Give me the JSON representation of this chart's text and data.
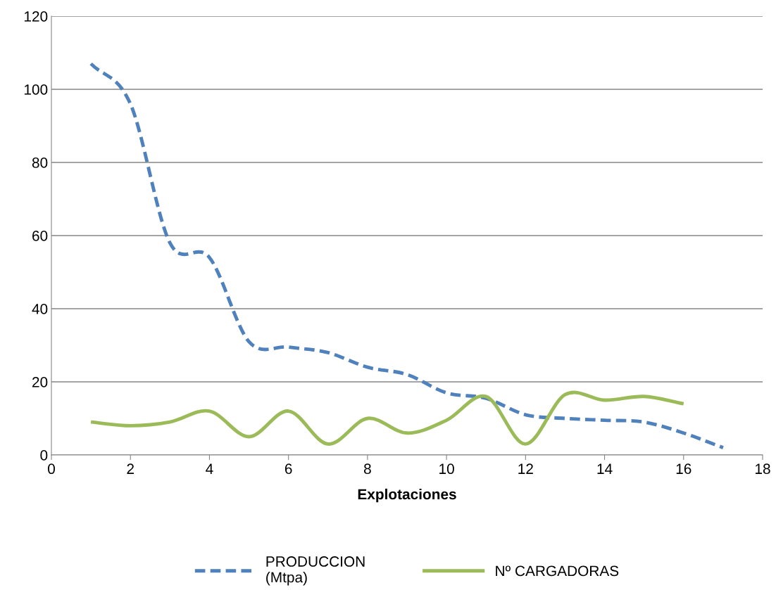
{
  "chart_data": {
    "type": "line",
    "xlabel": "Explotaciones",
    "xlim": [
      0,
      18
    ],
    "xticks": [
      0,
      2,
      4,
      6,
      8,
      10,
      12,
      14,
      16,
      18
    ],
    "ylim": [
      0,
      120
    ],
    "yticks": [
      0,
      20,
      40,
      60,
      80,
      100,
      120
    ],
    "grid": "y",
    "legend": "bottom",
    "marker": "none",
    "series": [
      {
        "name": "PRODUCCION\n(Mtpa)",
        "color": "#4f81bd",
        "line_style": "dashed",
        "x": [
          1,
          2,
          3,
          4,
          5,
          6,
          7,
          8,
          9,
          10,
          11,
          12,
          13,
          14,
          15,
          16,
          17
        ],
        "values": [
          107,
          96,
          58,
          54,
          31,
          29.5,
          28,
          24,
          22,
          17,
          15.5,
          11,
          10,
          9.5,
          9,
          6,
          2
        ]
      },
      {
        "name": "Nº CARGADORAS",
        "color": "#9bbb59",
        "line_style": "solid",
        "x": [
          1,
          2,
          3,
          4,
          5,
          6,
          7,
          8,
          9,
          10,
          11,
          12,
          13,
          14,
          15,
          16
        ],
        "values": [
          9,
          8,
          9,
          12,
          5,
          12,
          3,
          10,
          6,
          9.5,
          16,
          3,
          16.5,
          15,
          16,
          14
        ]
      }
    ]
  }
}
